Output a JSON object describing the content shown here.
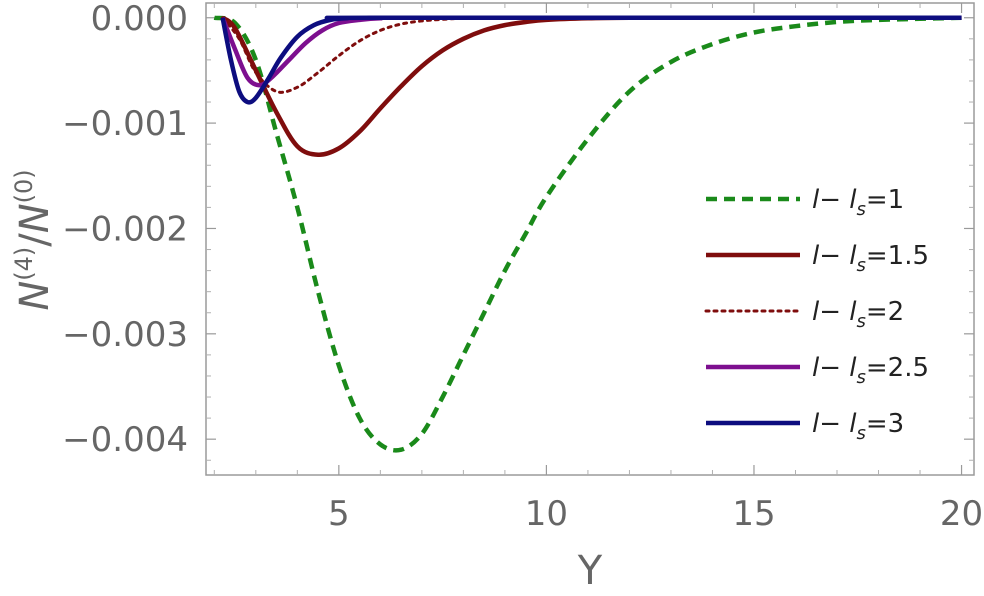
{
  "chart_data": {
    "type": "line",
    "xlabel": "Y",
    "ylabel": {
      "base1": "N",
      "sup1": "(4)",
      "slash": "/",
      "base2": "N",
      "sup2": "(0)"
    },
    "xlim": [
      1.8,
      20.3
    ],
    "ylim": [
      -0.00434,
      0.00014
    ],
    "xticks": [
      5,
      10,
      15,
      20
    ],
    "xtick_labels": [
      "5",
      "10",
      "15",
      "20"
    ],
    "yticks": [
      0.0,
      -0.001,
      -0.002,
      -0.003,
      -0.004
    ],
    "ytick_labels": [
      "0.000",
      "−0.001",
      "−0.002",
      "−0.003",
      "−0.004"
    ],
    "grid": false,
    "legend_position": "right",
    "legend_prefix": "l− l",
    "legend_subscript": "s",
    "series": [
      {
        "name": "l− l_s=1",
        "legend_value": "=1",
        "color": "#1a8a1a",
        "style": "dashed",
        "x": [
          2.0,
          2.5,
          3.0,
          3.5,
          4.0,
          4.5,
          5.0,
          5.5,
          6.0,
          6.5,
          7.0,
          7.5,
          8.0,
          8.5,
          9.0,
          9.5,
          10.0,
          11.0,
          12.0,
          13.0,
          14.0,
          15.0,
          16.0,
          17.0,
          18.0,
          19.0,
          20.0
        ],
        "y": [
          0.0,
          -5e-05,
          -0.0004,
          -0.0011,
          -0.0018,
          -0.0026,
          -0.0033,
          -0.0038,
          -0.00405,
          -0.0041,
          -0.00395,
          -0.0036,
          -0.0032,
          -0.0028,
          -0.0024,
          -0.00205,
          -0.0017,
          -0.00115,
          -0.0007,
          -0.00042,
          -0.00025,
          -0.00014,
          -8e-05,
          -4e-05,
          -2e-05,
          -1e-05,
          0.0
        ]
      },
      {
        "name": "l− l_s=1.5",
        "legend_value": "=1.5",
        "color": "#7f0d0d",
        "style": "solid",
        "x": [
          2.2,
          2.5,
          3.0,
          3.5,
          4.0,
          4.5,
          5.0,
          5.5,
          6.0,
          6.5,
          7.0,
          7.5,
          8.0,
          8.5,
          9.0,
          9.5,
          10.0,
          11.0,
          12.0,
          13.0,
          20.0
        ],
        "y": [
          0.0,
          -0.0001,
          -0.0005,
          -0.0009,
          -0.00122,
          -0.0013,
          -0.00124,
          -0.00108,
          -0.00086,
          -0.00065,
          -0.00046,
          -0.00031,
          -0.0002,
          -0.00012,
          -7e-05,
          -4e-05,
          -2e-05,
          -5e-06,
          0.0,
          0.0,
          0.0
        ]
      },
      {
        "name": "l− l_s=2",
        "legend_value": "=2",
        "color": "#7f0d0d",
        "style": "dotted",
        "x": [
          2.2,
          2.6,
          3.0,
          3.5,
          4.0,
          4.5,
          5.0,
          5.5,
          6.0,
          6.5,
          7.0,
          7.5,
          8.0,
          9.0,
          20.0
        ],
        "y": [
          0.0,
          -0.0002,
          -0.00052,
          -0.0007,
          -0.00066,
          -0.00052,
          -0.00036,
          -0.00022,
          -0.00012,
          -6e-05,
          -3e-05,
          -1.5e-05,
          -5e-06,
          0.0,
          0.0
        ]
      },
      {
        "name": "l− l_s=2.5",
        "legend_value": "=2.5",
        "color": "#7d0f8f",
        "style": "solid",
        "x": [
          2.2,
          2.5,
          2.8,
          3.1,
          3.4,
          3.8,
          4.2,
          4.6,
          5.0,
          5.5,
          6.0,
          7.0,
          20.0
        ],
        "y": [
          0.0,
          -0.0003,
          -0.00057,
          -0.00064,
          -0.00056,
          -0.0004,
          -0.00024,
          -0.00012,
          -5e-05,
          -2e-05,
          -5e-06,
          0.0,
          0.0
        ]
      },
      {
        "name": "l− l_s=3",
        "legend_value": "=3",
        "color": "#0d0d7f",
        "style": "solid",
        "x": [
          2.2,
          2.4,
          2.6,
          2.8,
          3.0,
          3.3,
          3.6,
          4.0,
          4.4,
          4.8,
          5.2,
          6.0,
          20.0
        ],
        "y": [
          0.0,
          -0.0004,
          -0.0007,
          -0.0008,
          -0.00076,
          -0.00058,
          -0.00038,
          -0.00018,
          -7e-05,
          -2e-05,
          -5e-06,
          0.0,
          0.0
        ]
      }
    ]
  }
}
